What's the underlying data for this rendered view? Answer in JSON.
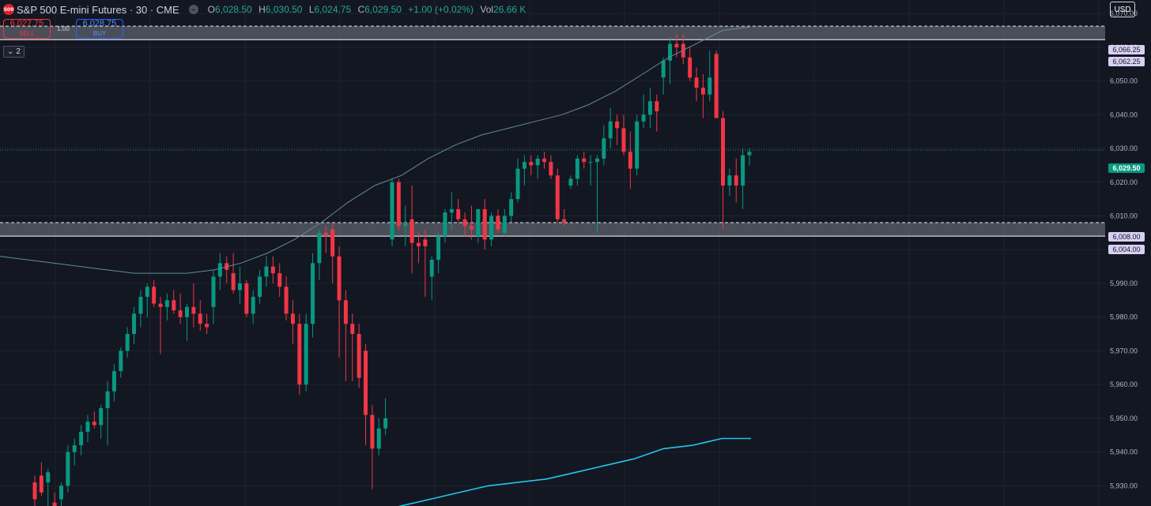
{
  "header": {
    "logo_text": "500",
    "title": "S&P 500 E-mini Futures · 30 · CME",
    "collapse_icon": "minus-icon",
    "ohlc": {
      "o_label": "O",
      "o": "6,028.50",
      "h_label": "H",
      "h": "6,030.50",
      "l_label": "L",
      "l": "6,024.75",
      "c_label": "C",
      "c": "6,029.50",
      "change": "+1.00 (+0.02%)",
      "vol_label": "Vol",
      "vol": "26.66 K"
    }
  },
  "trading": {
    "sell_price": "6,027.75",
    "sell_label": "SELL",
    "quantity": "1.00",
    "buy_price": "6,028.75",
    "buy_label": "BUY"
  },
  "indicator_toggle": {
    "icon": "chevron-down-icon",
    "count": "2"
  },
  "currency": "USD",
  "price_labels": {
    "zone_top_upper": "6,066.25",
    "zone_top_lower": "6,062.25",
    "zone_bottom_upper": "6,008.00",
    "zone_bottom_lower": "6,004.00",
    "last": "6,029.50"
  },
  "colors": {
    "background": "#131722",
    "up": "#089981",
    "down": "#f23645",
    "ma_fast": "#5e8e9a",
    "ma_slow": "#22c6e8",
    "zone": "#787b86"
  },
  "chart_data": {
    "type": "candlestick",
    "ylim": [
      5924,
      6074
    ],
    "y_ticks": [
      "6,070.00",
      "6,060.00",
      "6,050.00",
      "6,040.00",
      "6,030.00",
      "6,020.00",
      "6,010.00",
      "6,000.00",
      "5,990.00",
      "5,980.00",
      "5,970.00",
      "5,960.00",
      "5,950.00",
      "5,940.00",
      "5,930.00"
    ],
    "y_tick_values": [
      6070,
      6060,
      6050,
      6040,
      6030,
      6020,
      6010,
      6000,
      5990,
      5980,
      5970,
      5960,
      5950,
      5940,
      5930
    ],
    "candles": [
      {
        "o": 5931,
        "h": 5933,
        "l": 5924,
        "c": 5926
      },
      {
        "o": 5933,
        "h": 5937,
        "l": 5927,
        "c": 5928
      },
      {
        "o": 5931,
        "h": 5935,
        "l": 5924,
        "c": 5934
      },
      {
        "o": 5925,
        "h": 5928,
        "l": 5922,
        "c": 5924
      },
      {
        "o": 5926,
        "h": 5931,
        "l": 5924,
        "c": 5930
      },
      {
        "o": 5930,
        "h": 5942,
        "l": 5928,
        "c": 5940
      },
      {
        "o": 5940,
        "h": 5944,
        "l": 5936,
        "c": 5942
      },
      {
        "o": 5942,
        "h": 5948,
        "l": 5939,
        "c": 5946
      },
      {
        "o": 5946,
        "h": 5951,
        "l": 5943,
        "c": 5949
      },
      {
        "o": 5949,
        "h": 5952,
        "l": 5947,
        "c": 5948
      },
      {
        "o": 5948,
        "h": 5954,
        "l": 5944,
        "c": 5953
      },
      {
        "o": 5953,
        "h": 5961,
        "l": 5942,
        "c": 5958
      },
      {
        "o": 5958,
        "h": 5966,
        "l": 5955,
        "c": 5964
      },
      {
        "o": 5964,
        "h": 5971,
        "l": 5962,
        "c": 5970
      },
      {
        "o": 5970,
        "h": 5977,
        "l": 5968,
        "c": 5975
      },
      {
        "o": 5975,
        "h": 5983,
        "l": 5972,
        "c": 5981
      },
      {
        "o": 5981,
        "h": 5988,
        "l": 5977,
        "c": 5986
      },
      {
        "o": 5986,
        "h": 5990,
        "l": 5980,
        "c": 5989
      },
      {
        "o": 5989,
        "h": 5991,
        "l": 5983,
        "c": 5984
      },
      {
        "o": 5984,
        "h": 5986,
        "l": 5969,
        "c": 5983
      },
      {
        "o": 5983,
        "h": 5987,
        "l": 5979,
        "c": 5985
      },
      {
        "o": 5985,
        "h": 5988,
        "l": 5981,
        "c": 5982
      },
      {
        "o": 5982,
        "h": 5987,
        "l": 5978,
        "c": 5980
      },
      {
        "o": 5980,
        "h": 5984,
        "l": 5973,
        "c": 5983
      },
      {
        "o": 5983,
        "h": 5990,
        "l": 5977,
        "c": 5981
      },
      {
        "o": 5981,
        "h": 5985,
        "l": 5976,
        "c": 5978
      },
      {
        "o": 5978,
        "h": 5981,
        "l": 5975,
        "c": 5977
      },
      {
        "o": 5983,
        "h": 5994,
        "l": 5978,
        "c": 5992
      },
      {
        "o": 5992,
        "h": 5999,
        "l": 5988,
        "c": 5996
      },
      {
        "o": 5996,
        "h": 5998,
        "l": 5990,
        "c": 5994
      },
      {
        "o": 5993,
        "h": 5999,
        "l": 5987,
        "c": 5988
      },
      {
        "o": 5988,
        "h": 5995,
        "l": 5984,
        "c": 5990
      },
      {
        "o": 5990,
        "h": 5991,
        "l": 5980,
        "c": 5981
      },
      {
        "o": 5981,
        "h": 5988,
        "l": 5978,
        "c": 5986
      },
      {
        "o": 5986,
        "h": 5994,
        "l": 5984,
        "c": 5992
      },
      {
        "o": 5992,
        "h": 5998,
        "l": 5989,
        "c": 5995
      },
      {
        "o": 5995,
        "h": 5998,
        "l": 5990,
        "c": 5993
      },
      {
        "o": 5993,
        "h": 5996,
        "l": 5986,
        "c": 5989
      },
      {
        "o": 5989,
        "h": 5992,
        "l": 5979,
        "c": 5981
      },
      {
        "o": 5981,
        "h": 5985,
        "l": 5972,
        "c": 5978
      },
      {
        "o": 5978,
        "h": 5981,
        "l": 5957,
        "c": 5960
      },
      {
        "o": 5960,
        "h": 5981,
        "l": 5958,
        "c": 5978
      },
      {
        "o": 5978,
        "h": 5999,
        "l": 5974,
        "c": 5996
      },
      {
        "o": 5996,
        "h": 6006,
        "l": 5991,
        "c": 6005
      },
      {
        "o": 6005,
        "h": 6007,
        "l": 5999,
        "c": 6004
      },
      {
        "o": 6006,
        "h": 6008,
        "l": 5990,
        "c": 5998
      },
      {
        "o": 5998,
        "h": 6001,
        "l": 5968,
        "c": 5985
      },
      {
        "o": 5985,
        "h": 5988,
        "l": 5961,
        "c": 5978
      },
      {
        "o": 5978,
        "h": 5981,
        "l": 5961,
        "c": 5975
      },
      {
        "o": 5975,
        "h": 5978,
        "l": 5959,
        "c": 5962
      },
      {
        "o": 5970,
        "h": 5972,
        "l": 5942,
        "c": 5951
      },
      {
        "o": 5951,
        "h": 5954,
        "l": 5929,
        "c": 5941
      },
      {
        "o": 5941,
        "h": 5950,
        "l": 5939,
        "c": 5947
      },
      {
        "o": 5947,
        "h": 5956,
        "l": 5945,
        "c": 5950
      },
      {
        "o": 6003,
        "h": 6021,
        "l": 6001,
        "c": 6020
      },
      {
        "o": 6020,
        "h": 6021,
        "l": 6006,
        "c": 6007
      },
      {
        "o": 6007,
        "h": 6013,
        "l": 6001,
        "c": 6008
      },
      {
        "o": 6009,
        "h": 6019,
        "l": 5993,
        "c": 6002
      },
      {
        "o": 6002,
        "h": 6005,
        "l": 5996,
        "c": 6001
      },
      {
        "o": 6003,
        "h": 6006,
        "l": 5986,
        "c": 6001
      },
      {
        "o": 5992,
        "h": 5998,
        "l": 5985,
        "c": 5997
      },
      {
        "o": 5997,
        "h": 6005,
        "l": 5993,
        "c": 6004
      },
      {
        "o": 6004,
        "h": 6012,
        "l": 6002,
        "c": 6011
      },
      {
        "o": 6011,
        "h": 6017,
        "l": 6006,
        "c": 6012
      },
      {
        "o": 6012,
        "h": 6015,
        "l": 6008,
        "c": 6009
      },
      {
        "o": 6009,
        "h": 6011,
        "l": 6004,
        "c": 6007
      },
      {
        "o": 6007,
        "h": 6013,
        "l": 6003,
        "c": 6006
      },
      {
        "o": 6004,
        "h": 6012,
        "l": 6002,
        "c": 6012
      },
      {
        "o": 6012,
        "h": 6015,
        "l": 6000,
        "c": 6003
      },
      {
        "o": 6003,
        "h": 6011,
        "l": 6001,
        "c": 6010
      },
      {
        "o": 6010,
        "h": 6012,
        "l": 6005,
        "c": 6006
      },
      {
        "o": 6005,
        "h": 6012,
        "l": 6004,
        "c": 6010
      },
      {
        "o": 6010,
        "h": 6017,
        "l": 6008,
        "c": 6015
      },
      {
        "o": 6015,
        "h": 6027,
        "l": 6014,
        "c": 6024
      },
      {
        "o": 6024,
        "h": 6028,
        "l": 6019,
        "c": 6026
      },
      {
        "o": 6026,
        "h": 6028,
        "l": 6022,
        "c": 6025
      },
      {
        "o": 6025,
        "h": 6028,
        "l": 6021,
        "c": 6027
      },
      {
        "o": 6027,
        "h": 6029,
        "l": 6024,
        "c": 6026
      },
      {
        "o": 6026,
        "h": 6028,
        "l": 6021,
        "c": 6022
      },
      {
        "o": 6022,
        "h": 6024,
        "l": 6008,
        "c": 6009
      },
      {
        "o": 6009,
        "h": 6012,
        "l": 6007,
        "c": 6008
      },
      {
        "o": 6019,
        "h": 6022,
        "l": 6018,
        "c": 6021
      },
      {
        "o": 6021,
        "h": 6028,
        "l": 6019,
        "c": 6027
      },
      {
        "o": 6027,
        "h": 6029,
        "l": 6024,
        "c": 6026
      },
      {
        "o": 6026,
        "h": 6028,
        "l": 6019,
        "c": 6026
      },
      {
        "o": 6026,
        "h": 6028,
        "l": 6005,
        "c": 6027
      },
      {
        "o": 6027,
        "h": 6037,
        "l": 6025,
        "c": 6033
      },
      {
        "o": 6033,
        "h": 6042,
        "l": 6030,
        "c": 6038
      },
      {
        "o": 6038,
        "h": 6040,
        "l": 6031,
        "c": 6036
      },
      {
        "o": 6036,
        "h": 6040,
        "l": 6028,
        "c": 6029
      },
      {
        "o": 6029,
        "h": 6035,
        "l": 6018,
        "c": 6024
      },
      {
        "o": 6024,
        "h": 6040,
        "l": 6022,
        "c": 6038
      },
      {
        "o": 6038,
        "h": 6046,
        "l": 6036,
        "c": 6040
      },
      {
        "o": 6040,
        "h": 6048,
        "l": 6036,
        "c": 6044
      },
      {
        "o": 6044,
        "h": 6046,
        "l": 6035,
        "c": 6041
      },
      {
        "o": 6051,
        "h": 6057,
        "l": 6046,
        "c": 6056
      },
      {
        "o": 6056,
        "h": 6063,
        "l": 6049,
        "c": 6061
      },
      {
        "o": 6061,
        "h": 6064,
        "l": 6057,
        "c": 6060
      },
      {
        "o": 6061,
        "h": 6064,
        "l": 6055,
        "c": 6057
      },
      {
        "o": 6057,
        "h": 6060,
        "l": 6050,
        "c": 6051
      },
      {
        "o": 6051,
        "h": 6054,
        "l": 6044,
        "c": 6048
      },
      {
        "o": 6048,
        "h": 6052,
        "l": 6039,
        "c": 6046
      },
      {
        "o": 6046,
        "h": 6059,
        "l": 6044,
        "c": 6051
      },
      {
        "o": 6058,
        "h": 6059,
        "l": 6039,
        "c": 6039
      },
      {
        "o": 6039,
        "h": 6041,
        "l": 6006,
        "c": 6019
      },
      {
        "o": 6019,
        "h": 6024,
        "l": 6016,
        "c": 6022
      },
      {
        "o": 6022,
        "h": 6027,
        "l": 6014,
        "c": 6019
      },
      {
        "o": 6019,
        "h": 6030,
        "l": 6012,
        "c": 6028
      },
      {
        "o": 6028,
        "h": 6030,
        "l": 6025,
        "c": 6029
      }
    ],
    "moving_average_fast": [
      5998,
      5997,
      5996,
      5995,
      5994,
      5993,
      5993,
      5993,
      5994,
      5996,
      5999,
      6003,
      6008,
      6014,
      6019,
      6022,
      6027,
      6031,
      6034,
      6036,
      6038,
      6040,
      6043,
      6047,
      6052,
      6057,
      6061,
      6065,
      6066
    ],
    "moving_average_slow": [
      5922,
      5924,
      5926,
      5928,
      5930,
      5931,
      5932,
      5934,
      5936,
      5938,
      5941,
      5942,
      5944,
      5944
    ],
    "zones": [
      {
        "upper": 6066.25,
        "lower": 6062.25
      },
      {
        "upper": 6008.0,
        "lower": 6004.0
      }
    ],
    "last_price": 6029.5
  }
}
